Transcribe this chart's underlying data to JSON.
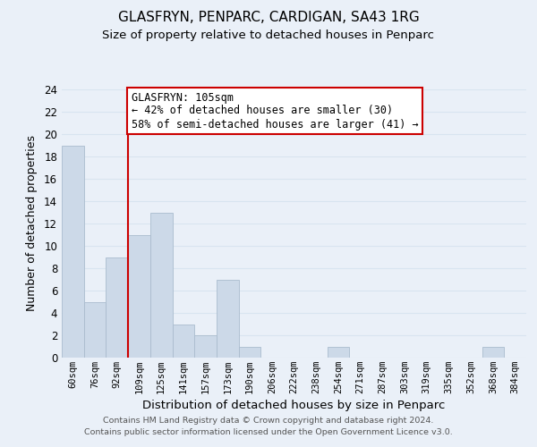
{
  "title": "GLASFRYN, PENPARC, CARDIGAN, SA43 1RG",
  "subtitle": "Size of property relative to detached houses in Penparc",
  "xlabel": "Distribution of detached houses by size in Penparc",
  "ylabel": "Number of detached properties",
  "bar_labels": [
    "60sqm",
    "76sqm",
    "92sqm",
    "109sqm",
    "125sqm",
    "141sqm",
    "157sqm",
    "173sqm",
    "190sqm",
    "206sqm",
    "222sqm",
    "238sqm",
    "254sqm",
    "271sqm",
    "287sqm",
    "303sqm",
    "319sqm",
    "335sqm",
    "352sqm",
    "368sqm",
    "384sqm"
  ],
  "bar_values": [
    19,
    5,
    9,
    11,
    13,
    3,
    2,
    7,
    1,
    0,
    0,
    0,
    1,
    0,
    0,
    0,
    0,
    0,
    0,
    1,
    0
  ],
  "bar_color": "#ccd9e8",
  "bar_edgecolor": "#aabcce",
  "vline_x": 3.0,
  "vline_color": "#cc0000",
  "annotation_text": "GLASFRYN: 105sqm\n← 42% of detached houses are smaller (30)\n58% of semi-detached houses are larger (41) →",
  "annotation_box_edgecolor": "#cc0000",
  "annotation_box_facecolor": "#ffffff",
  "ylim": [
    0,
    24
  ],
  "yticks": [
    0,
    2,
    4,
    6,
    8,
    10,
    12,
    14,
    16,
    18,
    20,
    22,
    24
  ],
  "grid_color": "#d8e4f0",
  "background_color": "#eaf0f8",
  "footer1": "Contains HM Land Registry data © Crown copyright and database right 2024.",
  "footer2": "Contains public sector information licensed under the Open Government Licence v3.0."
}
